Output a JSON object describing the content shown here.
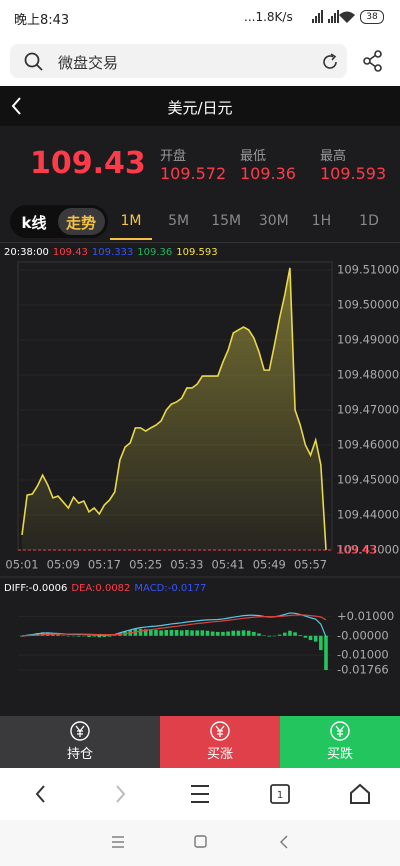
{
  "status_bar": {
    "time": "晚上8:43",
    "speed": "...1.8K/s",
    "battery": "38"
  },
  "browser": {
    "search_text": "微盘交易",
    "tab_count": 1
  },
  "header": {
    "title": "美元/日元"
  },
  "quote": {
    "price": 109.43,
    "stats": [
      {
        "label": "开盘",
        "value": 109.572
      },
      {
        "label": "最低",
        "value": 109.36
      },
      {
        "label": "最高",
        "value": 109.593
      }
    ]
  },
  "tabs": {
    "modes": [
      "k线",
      "走势"
    ],
    "active_mode": 1,
    "periods": [
      "1M",
      "5M",
      "15M",
      "30M",
      "1H",
      "1D"
    ],
    "active_period": 0
  },
  "price_chart": {
    "type": "line",
    "time": "20:38:00",
    "legend": [
      {
        "text": "109.43",
        "color": "#ff3b4a"
      },
      {
        "text": "109.333",
        "color": "#3355ff"
      },
      {
        "text": "109.36",
        "color": "#22b35a"
      },
      {
        "text": "109.593",
        "color": "#f2e04a"
      }
    ],
    "categories": [
      "05:01",
      null,
      null,
      null,
      null,
      null,
      null,
      null,
      "05:09",
      null,
      null,
      null,
      null,
      null,
      null,
      null,
      "05:17",
      null,
      null,
      null,
      null,
      null,
      null,
      null,
      "05:25",
      null,
      null,
      null,
      null,
      null,
      null,
      null,
      "05:33",
      null,
      null,
      null,
      null,
      null,
      null,
      null,
      "05:41",
      null,
      null,
      null,
      null,
      null,
      null,
      null,
      "05:49",
      null,
      null,
      null,
      null,
      null,
      null,
      null,
      "05:57",
      null,
      null,
      null
    ],
    "values": [
      109.4343,
      109.4457,
      109.446,
      109.4483,
      109.4514,
      109.4486,
      109.4449,
      109.4454,
      109.4437,
      109.442,
      109.4451,
      109.4434,
      109.444,
      109.4409,
      109.442,
      109.4403,
      109.4429,
      109.4443,
      109.4466,
      109.4557,
      109.4594,
      109.4606,
      109.4649,
      109.4649,
      109.464,
      109.4649,
      109.4657,
      109.4669,
      109.47,
      109.4717,
      109.4723,
      109.4734,
      109.4763,
      109.4763,
      109.4774,
      109.4797,
      109.4797,
      109.4797,
      109.4797,
      109.4837,
      109.4871,
      109.492,
      109.4929,
      109.4937,
      109.4929,
      109.4906,
      109.4866,
      109.4814,
      109.4814,
      109.4886,
      109.4963,
      109.5029,
      109.5106,
      109.47,
      109.4657,
      109.46,
      109.4571,
      109.4614,
      109.4543,
      109.43
    ],
    "color": "#e8d84a",
    "last_line_color": "#ff3b4a",
    "ylim": [
      109.43,
      109.5123
    ],
    "yticks": [
      {
        "value": 109.51,
        "label": "109.51000"
      },
      {
        "value": 109.5,
        "label": "109.50000"
      },
      {
        "value": 109.49,
        "label": "109.49000"
      },
      {
        "value": 109.48,
        "label": "109.48000"
      },
      {
        "value": 109.47,
        "label": "109.47000"
      },
      {
        "value": 109.46,
        "label": "109.46000"
      },
      {
        "value": 109.45,
        "label": "109.45000"
      },
      {
        "value": 109.44,
        "label": "109.44000"
      },
      {
        "value": 109.43,
        "label": "109.43000"
      }
    ]
  },
  "macd_chart": {
    "type": "macd",
    "legend": [
      {
        "text": "DIFF:-0.0006",
        "color": "#ffffff"
      },
      {
        "text": "DEA:0.0082",
        "color": "#ff3b4a"
      },
      {
        "text": "MACD:-0.0177",
        "color": "#3355ff"
      }
    ],
    "series": [
      {
        "color": "#5bc8e8",
        "values": [
          -0.0002,
          0.0003,
          0.0006,
          0.001,
          0.0014,
          0.0015,
          0.0013,
          0.0012,
          0.001,
          0.0008,
          0.0008,
          0.0007,
          0.0007,
          0.0005,
          0.0005,
          0.0003,
          0.0003,
          0.0004,
          0.0007,
          0.0015,
          0.0023,
          0.003,
          0.0037,
          0.0042,
          0.0045,
          0.0048,
          0.005,
          0.0053,
          0.0057,
          0.0061,
          0.0064,
          0.0067,
          0.0071,
          0.0074,
          0.0077,
          0.008,
          0.0082,
          0.0083,
          0.0084,
          0.0087,
          0.0091,
          0.0096,
          0.01,
          0.0104,
          0.0106,
          0.0106,
          0.0104,
          0.01,
          0.0097,
          0.0098,
          0.0103,
          0.011,
          0.0118,
          0.0116,
          0.011,
          0.0102,
          0.0093,
          0.0086,
          0.006,
          -0.0006
        ]
      },
      {
        "color": "#e0443e",
        "values": [
          0,
          0.0001,
          0.0002,
          0.0003,
          0.0005,
          0.0007,
          0.0008,
          0.0009,
          0.0009,
          0.0009,
          0.0009,
          0.0009,
          0.0008,
          0.0008,
          0.0007,
          0.0007,
          0.0006,
          0.0006,
          0.0006,
          0.0008,
          0.0011,
          0.0015,
          0.0019,
          0.0024,
          0.0028,
          0.0032,
          0.0035,
          0.0039,
          0.0042,
          0.0046,
          0.0049,
          0.0053,
          0.0056,
          0.006,
          0.0063,
          0.0066,
          0.0069,
          0.0072,
          0.0074,
          0.0077,
          0.008,
          0.0083,
          0.0087,
          0.009,
          0.0093,
          0.0096,
          0.0098,
          0.0099,
          0.0099,
          0.0099,
          0.01,
          0.0102,
          0.0105,
          0.0107,
          0.0108,
          0.0107,
          0.0104,
          0.0101,
          0.0097,
          0.0082
        ]
      },
      {
        "type": "bar",
        "color": "#22c55e",
        "values": [
          -0.0004,
          0.0004,
          0.0008,
          0.0014,
          0.0018,
          0.0016,
          0.001,
          0.0006,
          0.0002,
          -0.0002,
          -0.0002,
          -0.0004,
          -0.0002,
          -0.0006,
          -0.0004,
          -0.0008,
          -0.0006,
          -0.0004,
          0.0002,
          0.0014,
          0.0024,
          0.003,
          0.0036,
          0.0036,
          0.0034,
          0.0032,
          0.003,
          0.0028,
          0.003,
          0.003,
          0.003,
          0.0028,
          0.003,
          0.0028,
          0.0028,
          0.0028,
          0.0026,
          0.0022,
          0.002,
          0.002,
          0.0022,
          0.0026,
          0.0026,
          0.0028,
          0.0026,
          0.002,
          0.0012,
          0.0002,
          -0.0004,
          -0.0002,
          0.0006,
          0.0016,
          0.0026,
          0.0018,
          0.0004,
          -0.001,
          -0.0022,
          -0.003,
          -0.0074,
          -0.01766
        ]
      }
    ],
    "ylim": [
      -0.01766,
      0.0195
    ],
    "yticks": [
      {
        "value": 0.01,
        "label": "+0.01000"
      },
      {
        "value": 0,
        "label": "-0.00000"
      },
      {
        "value": -0.01,
        "label": "-0.01000"
      },
      {
        "value": -0.01766,
        "label": "-0.01766"
      }
    ]
  },
  "actions": [
    {
      "label": "持仓",
      "color": "#3a3a3c"
    },
    {
      "label": "买涨",
      "color": "#e0404a"
    },
    {
      "label": "买跌",
      "color": "#22c55e"
    }
  ]
}
